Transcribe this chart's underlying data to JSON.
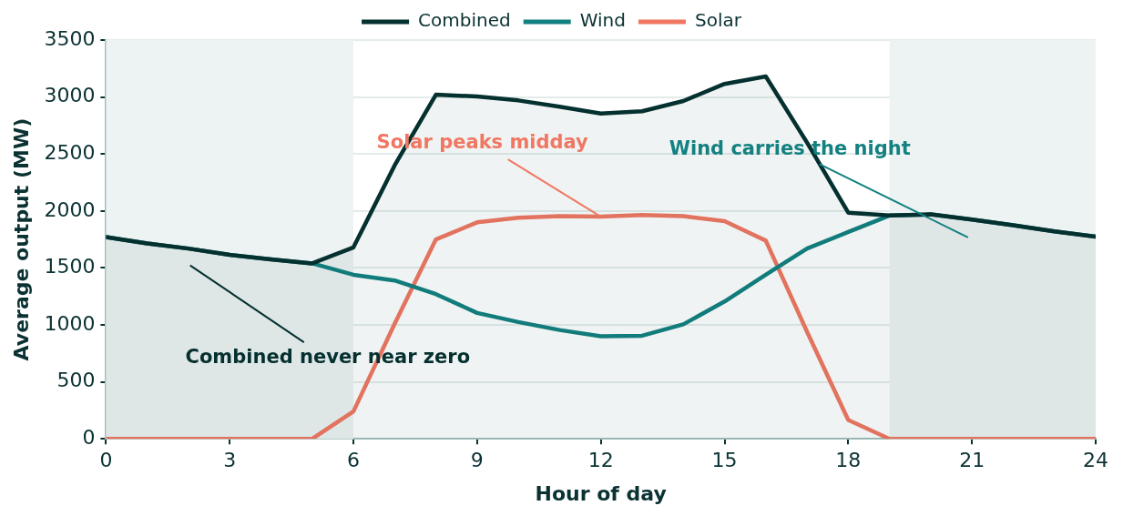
{
  "chart_data": {
    "type": "line",
    "xlabel": "Hour of day",
    "ylabel": "Average output (MW)",
    "x": [
      0,
      1,
      2,
      3,
      4,
      5,
      6,
      7,
      8,
      9,
      10,
      11,
      12,
      13,
      14,
      15,
      16,
      17,
      18,
      19,
      20,
      21,
      22,
      23,
      24
    ],
    "series": [
      {
        "name": "Combined",
        "type": "area",
        "color": "#04302f",
        "values": [
          1770,
          1715,
          1670,
          1615,
          1575,
          1540,
          1680,
          2400,
          3020,
          3005,
          2970,
          2915,
          2855,
          2875,
          2965,
          3115,
          3180,
          2600,
          1985,
          1960,
          1970,
          1925,
          1875,
          1820,
          1775
        ]
      },
      {
        "name": "Wind",
        "color": "#138180",
        "values": [
          1770,
          1715,
          1670,
          1615,
          1575,
          1540,
          1440,
          1390,
          1270,
          1105,
          1025,
          955,
          900,
          905,
          1005,
          1205,
          1440,
          1670,
          1815,
          1960,
          1970,
          1925,
          1875,
          1820,
          1775
        ]
      },
      {
        "name": "Solar",
        "color": "#f07762",
        "values": [
          0,
          0,
          0,
          0,
          0,
          0,
          240,
          1010,
          1750,
          1900,
          1940,
          1955,
          1950,
          1965,
          1955,
          1910,
          1740,
          940,
          165,
          0,
          0,
          0,
          0,
          0,
          0
        ]
      }
    ],
    "xlim": [
      0,
      24
    ],
    "xticks": [
      0,
      3,
      6,
      9,
      12,
      15,
      18,
      21,
      24
    ],
    "ylim": [
      0,
      3500
    ],
    "yticks": [
      0,
      500,
      1000,
      1500,
      2000,
      2500,
      3000,
      3500
    ],
    "grid": "y",
    "legend": "top",
    "marker": "none",
    "line_style": "solid",
    "bands": [
      {
        "axis": "x",
        "from": 0,
        "to": 6,
        "color": "#edf3f2"
      },
      {
        "axis": "x",
        "from": 19,
        "to": 24,
        "color": "#edf3f2"
      }
    ],
    "annotations": [
      "Combined never near zero",
      {
        "text": "Solar peaks midday",
        "x": 12,
        "y": 1950
      },
      "Wind carries the night"
    ]
  }
}
